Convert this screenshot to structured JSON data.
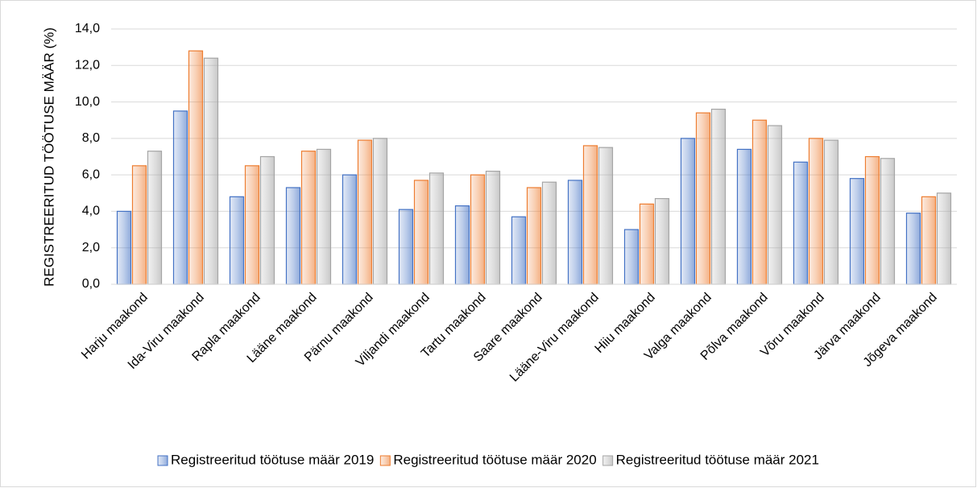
{
  "chart_data": {
    "type": "bar",
    "y_label": "REGISTREERITUD TÖÖTUSE MÄÄR (%)",
    "categories": [
      "Harju maakond",
      "Ida-Viru maakond",
      "Rapla maakond",
      "Lääne maakond",
      "Pärnu maakond",
      "Viljandi maakond",
      "Tartu maakond",
      "Saare maakond",
      "Lääne-Viru maakond",
      "Hiiu maakond",
      "Valga maakond",
      "Põlva maakond",
      "Võru maakond",
      "Järva maakond",
      "Jõgeva maakond"
    ],
    "series": [
      {
        "name": "Registreeritud töötuse määr 2019",
        "color": "#4472c4",
        "values": [
          4.0,
          9.5,
          4.8,
          5.3,
          6.0,
          4.1,
          4.3,
          3.7,
          5.7,
          3.0,
          8.0,
          7.4,
          6.7,
          5.8,
          3.9
        ]
      },
      {
        "name": "Registreeritud töötuse määr 2020",
        "color": "#ed7d31",
        "values": [
          6.5,
          12.8,
          6.5,
          7.3,
          7.9,
          5.7,
          6.0,
          5.3,
          7.6,
          4.4,
          9.4,
          9.0,
          8.0,
          7.0,
          4.8
        ]
      },
      {
        "name": "Registreeritud töötuse määr 2021",
        "color": "#a5a5a5",
        "values": [
          7.3,
          12.4,
          7.0,
          7.4,
          8.0,
          6.1,
          6.2,
          5.6,
          7.5,
          4.7,
          9.6,
          8.7,
          7.9,
          6.9,
          5.0
        ]
      }
    ],
    "ylim": [
      0,
      14
    ],
    "yticks": [
      {
        "value": 0,
        "label": "0,0"
      },
      {
        "value": 2,
        "label": "2,0"
      },
      {
        "value": 4,
        "label": "4,0"
      },
      {
        "value": 6,
        "label": "6,0"
      },
      {
        "value": 8,
        "label": "8,0"
      },
      {
        "value": 10,
        "label": "10,0"
      },
      {
        "value": 12,
        "label": "12,0"
      },
      {
        "value": 14,
        "label": "14,0"
      }
    ],
    "grid": true,
    "legend": "bottom"
  }
}
